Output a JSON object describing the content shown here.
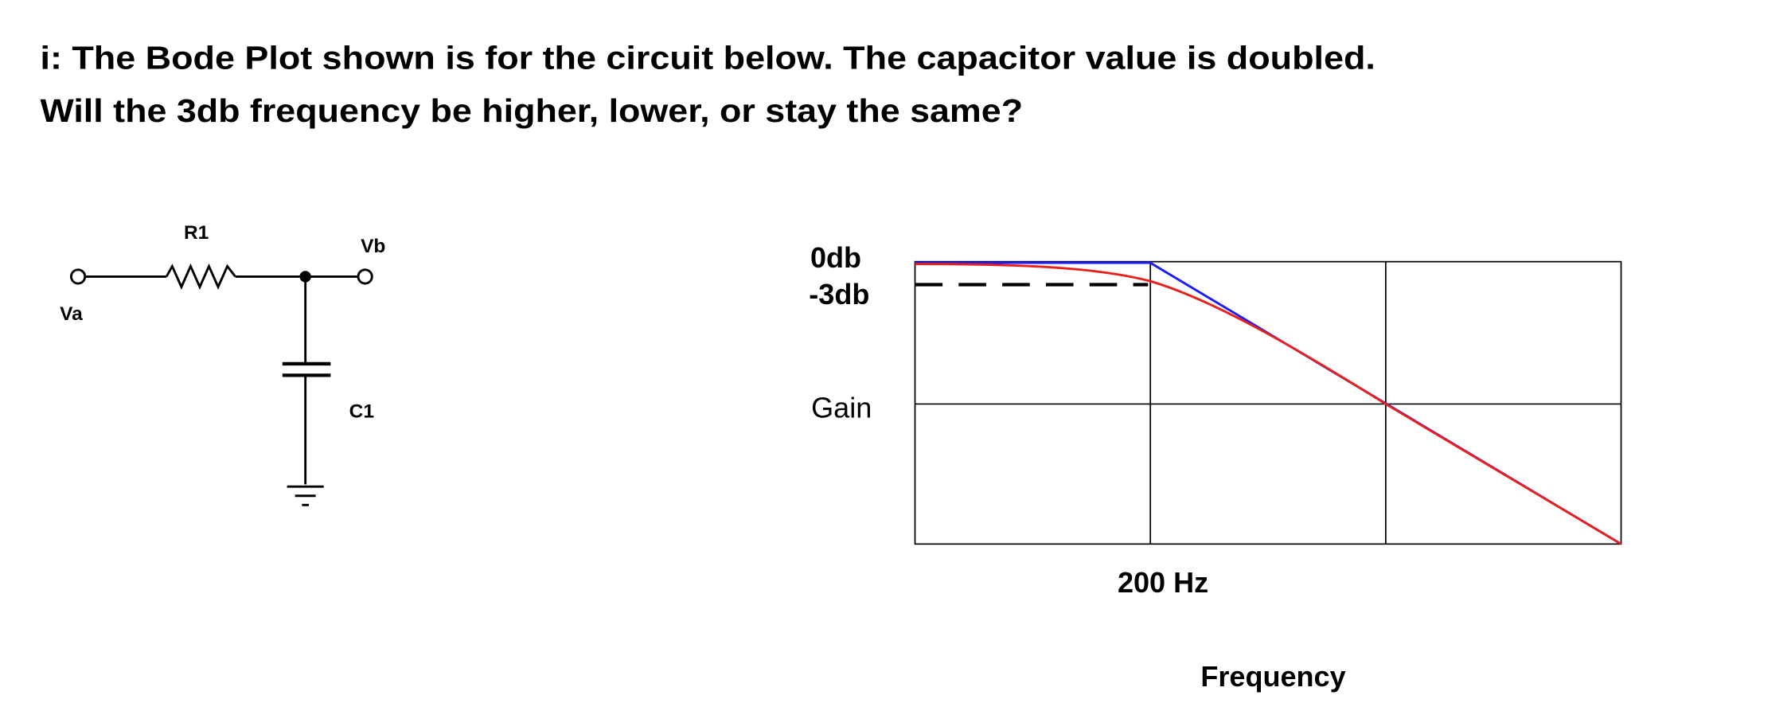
{
  "question": {
    "line1": "i:  The Bode Plot shown is for the circuit below.  The capacitor value is doubled.",
    "line2": "Will the 3db frequency be higher, lower, or stay the same?"
  },
  "circuit": {
    "r1": "R1",
    "vb": "Vb",
    "va": "Va",
    "c1": "C1"
  },
  "bode_plot": {
    "zero_db": "0db",
    "minus_3db": "-3db",
    "gain": "Gain",
    "corner": "200 Hz",
    "x_axis_label": "Frequency"
  }
}
